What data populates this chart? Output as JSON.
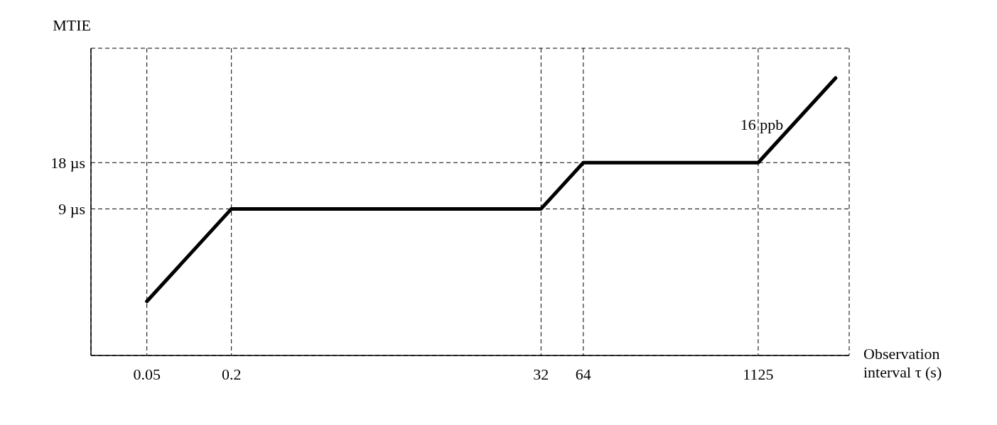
{
  "chart_data": {
    "type": "line",
    "ylabel": "MTIE",
    "xlabel": "Observation interval τ (s)",
    "x": [
      0.05,
      0.2,
      32,
      64,
      1125,
      4000
    ],
    "series": [
      {
        "color": "#000000",
        "values": [
          2.25,
          9,
          9,
          18,
          18,
          64
        ]
      }
    ],
    "log": "xy",
    "xlim": [
      0.02,
      5000
    ],
    "ylim": [
      1,
      100
    ],
    "xticks": [
      0.05,
      0.2,
      32,
      64,
      1125
    ],
    "yticks": [
      {
        "value": 9,
        "label": "9 µs"
      },
      {
        "value": 18,
        "label": "18 µs"
      }
    ],
    "grid": true,
    "marker": "none",
    "line_style": "solid",
    "annotations": [
      {
        "text": "16 ppb",
        "x": 2000,
        "y": 32
      }
    ]
  }
}
